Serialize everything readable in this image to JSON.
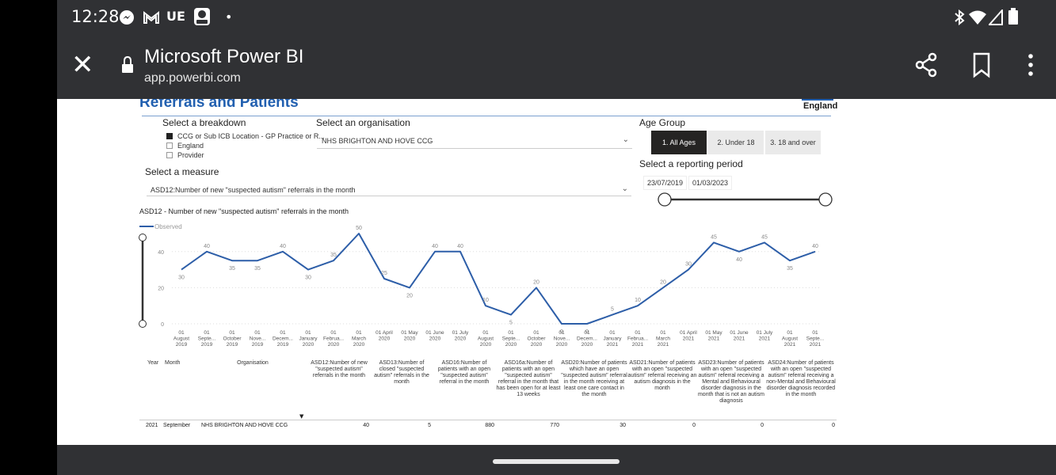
{
  "status_bar": {
    "time": "12:28",
    "carrier_text": "UE"
  },
  "app_bar": {
    "title": "Microsoft Power BI",
    "url": "app.powerbi.com"
  },
  "report": {
    "title": "Referrals and Patients",
    "logo_text": "England",
    "breakdown": {
      "label": "Select a breakdown",
      "options": [
        {
          "label": "CCG or Sub ICB Location - GP Practice or R...",
          "checked": true
        },
        {
          "label": "England",
          "checked": false
        },
        {
          "label": "Provider",
          "checked": false
        }
      ]
    },
    "organisation": {
      "label": "Select an organisation",
      "value": "NHS BRIGHTON AND HOVE CCG"
    },
    "measure": {
      "label": "Select a measure",
      "value": "ASD12:Number of new \"suspected autism\" referrals in the month"
    },
    "age_group": {
      "label": "Age Group",
      "options": [
        {
          "label": "1. All Ages",
          "selected": true
        },
        {
          "label": "2. Under 18",
          "selected": false
        },
        {
          "label": "3. 18 and over",
          "selected": false
        }
      ]
    },
    "reporting_period": {
      "label": "Select a reporting period",
      "start": "23/07/2019",
      "end": "01/03/2023"
    }
  },
  "chart_data": {
    "type": "line",
    "title": "ASD12 - Number of new \"suspected autism\" referrals in the month",
    "legend": [
      "Observed"
    ],
    "legend_position": "top-left",
    "yticks": [
      0,
      20,
      40
    ],
    "ylim": [
      0,
      50
    ],
    "grid": true,
    "categories": [
      [
        "01",
        "August",
        "2019"
      ],
      [
        "01",
        "Septe...",
        "2019"
      ],
      [
        "01",
        "October",
        "2019"
      ],
      [
        "01",
        "Nove...",
        "2019"
      ],
      [
        "01",
        "Decem...",
        "2019"
      ],
      [
        "01",
        "January",
        "2020"
      ],
      [
        "01",
        "Februa...",
        "2020"
      ],
      [
        "01",
        "March",
        "2020"
      ],
      [
        "01 April",
        "2020"
      ],
      [
        "01 May",
        "2020"
      ],
      [
        "01 June",
        "2020"
      ],
      [
        "01 July",
        "2020"
      ],
      [
        "01",
        "August",
        "2020"
      ],
      [
        "01",
        "Septe...",
        "2020"
      ],
      [
        "01",
        "October",
        "2020"
      ],
      [
        "01",
        "Nove...",
        "2020"
      ],
      [
        "01",
        "Decem...",
        "2020"
      ],
      [
        "01",
        "January",
        "2021"
      ],
      [
        "01",
        "Februa...",
        "2021"
      ],
      [
        "01",
        "March",
        "2021"
      ],
      [
        "01 April",
        "2021"
      ],
      [
        "01 May",
        "2021"
      ],
      [
        "01 June",
        "2021"
      ],
      [
        "01 July",
        "2021"
      ],
      [
        "01",
        "August",
        "2021"
      ],
      [
        "01",
        "Septe...",
        "2021"
      ]
    ],
    "series": [
      {
        "name": "Observed",
        "values": [
          30,
          40,
          35,
          35,
          40,
          30,
          35,
          50,
          25,
          20,
          40,
          40,
          10,
          5,
          20,
          0,
          0,
          5,
          10,
          20,
          30,
          45,
          40,
          45,
          35,
          40
        ]
      }
    ]
  },
  "table": {
    "headers": [
      "Year",
      "Month",
      "Organisation",
      "ASD12:Number of new \"suspected autism\" referrals in the month",
      "ASD13:Number of closed \"suspected autism\" referrals in the month",
      "ASD16:Number of patients with an open \"suspected autism\" referral in the month",
      "ASD16a:Number of patients with an open \"suspected autism\" referral in the month that has been open for at least 13 weeks",
      "ASD20:Number of patients which have an open \"suspected autism\" referral in the month receiving at least one care contact in the month",
      "ASD21:Number of patients with an open \"suspected autism\" referral receiving an autism diagnosis in the month",
      "ASD23:Number of patients with an open \"suspected autism\" referral receiving a Mental and Behavioural disorder diagnosis in the month that is not an autism diagnosis",
      "ASD24:Number of patients with an open \"suspected autism\" referral receiving a non-Mental and Behavioural disorder diagnosis recorded in the month"
    ],
    "rows": [
      [
        "2021",
        "September",
        "NHS BRIGHTON AND HOVE CCG",
        "40",
        "5",
        "880",
        "770",
        "30",
        "0",
        "0",
        "0"
      ]
    ]
  },
  "colors": {
    "accent": "#2260b0",
    "line": "#2d5ea8",
    "chrome": "#303134"
  }
}
